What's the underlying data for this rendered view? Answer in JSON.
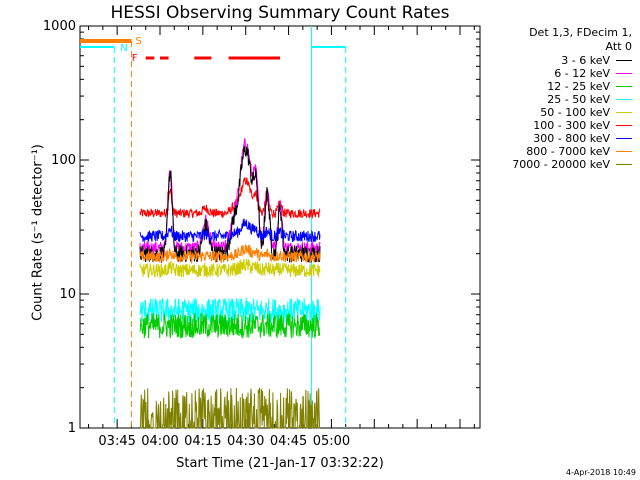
{
  "chart_data": {
    "type": "line",
    "title": "HESSI Observing Summary Count Rates",
    "xlabel": "Start Time (21-Jan-17 03:32:22)",
    "ylabel": "Count Rate (s⁻¹ detector⁻¹)",
    "ylog": true,
    "ylim": [
      1,
      1000
    ],
    "xlim_min": [
      212,
      352
    ],
    "x_ticks": [
      "03:45",
      "04:00",
      "04:15",
      "04:30",
      "04:45",
      "05:00"
    ],
    "x_tick_min": [
      225,
      240,
      255,
      270,
      285,
      300
    ],
    "y_ticks": [
      "1",
      "10",
      "100",
      "1000"
    ],
    "y_tick_vals": [
      1,
      10,
      100,
      1000
    ],
    "legend": {
      "header": [
        "Det 1,3, FDecim 1,",
        "Att 0"
      ],
      "entries": [
        {
          "label": "3 - 6 keV",
          "color": "#000000"
        },
        {
          "label": "6 - 12 keV",
          "color": "#ff00ff"
        },
        {
          "label": "12 - 25 keV",
          "color": "#00cc00"
        },
        {
          "label": "25 - 50 keV",
          "color": "#00ffff"
        },
        {
          "label": "50 - 100 keV",
          "color": "#cccc00"
        },
        {
          "label": "100 - 300 keV",
          "color": "#ff0000"
        },
        {
          "label": "300 - 800 keV",
          "color": "#0000ff"
        },
        {
          "label": "800 - 7000 keV",
          "color": "#ff8000"
        },
        {
          "label": "7000 - 20000 keV",
          "color": "#808000"
        }
      ]
    },
    "flags": {
      "S": {
        "label": "S",
        "color": "#ff8000",
        "range_min": [
          212,
          230
        ],
        "boundary_min": 230
      },
      "N": {
        "label": "N",
        "color": "#00ffff",
        "ranges_min": [
          [
            212,
            224
          ],
          [
            293,
            305
          ]
        ],
        "boundaries_min": [
          224,
          293,
          305
        ]
      },
      "F": {
        "label": "F",
        "color": "#ff0000",
        "segments_min": [
          [
            235,
            238
          ],
          [
            240,
            243
          ],
          [
            252,
            258
          ],
          [
            264,
            282
          ]
        ]
      }
    },
    "data_interval_min": [
      233,
      296
    ],
    "series": [
      {
        "color": "#ff0000",
        "base": 40,
        "noise": 0.08,
        "flare": 0.15
      },
      {
        "color": "#ff00ff",
        "base": 22,
        "noise": 0.12,
        "flare": 1.0
      },
      {
        "color": "#000000",
        "base": 20,
        "noise": 0.15,
        "flare": 1.0
      },
      {
        "color": "#0000ff",
        "base": 27,
        "noise": 0.1,
        "flare": 0.05
      },
      {
        "color": "#ff8000",
        "base": 19,
        "noise": 0.1,
        "flare": 0.03
      },
      {
        "color": "#cccc00",
        "base": 15,
        "noise": 0.12,
        "flare": 0.02
      },
      {
        "color": "#00ffff",
        "base": 7.5,
        "noise": 0.22,
        "flare": 0.0
      },
      {
        "color": "#00cc00",
        "base": 5.8,
        "noise": 0.22,
        "flare": 0.0
      },
      {
        "color": "#808000",
        "base": 1.3,
        "noise": 0.5,
        "flare": 0.0
      }
    ]
  },
  "footer": {
    "timestamp": "4-Apr-2018 10:49"
  }
}
